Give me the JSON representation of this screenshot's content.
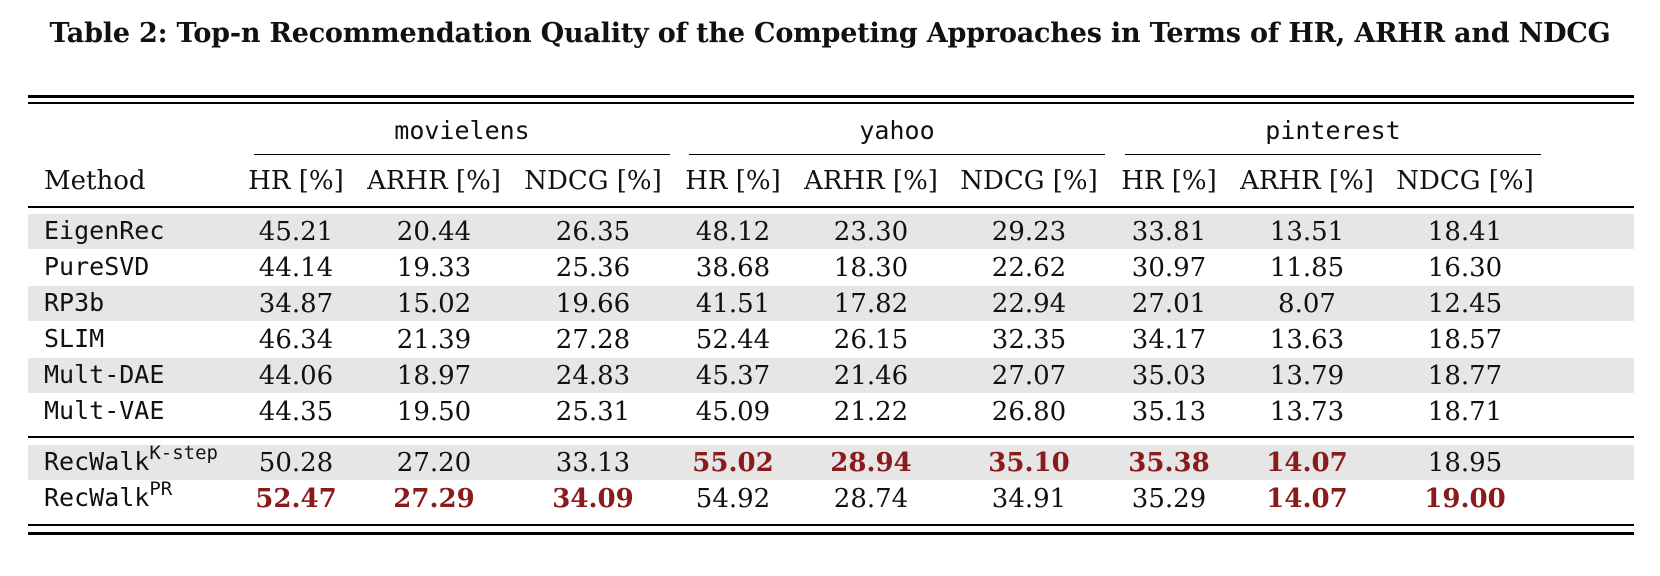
{
  "caption": "Table 2: Top-n Recommendation Quality of the Competing Approaches in Terms of HR, ARHR and NDCG",
  "header": {
    "method": "Method",
    "groups": [
      "movielens",
      "yahoo",
      "pinterest"
    ],
    "metrics": [
      "HR [%]",
      "ARHR [%]",
      "NDCG [%]"
    ]
  },
  "rows": [
    {
      "method": "EigenRec",
      "sup": "",
      "values": [
        "45.21",
        "20.44",
        "26.35",
        "48.12",
        "23.30",
        "29.23",
        "33.81",
        "13.51",
        "18.41"
      ],
      "best": [
        false,
        false,
        false,
        false,
        false,
        false,
        false,
        false,
        false
      ]
    },
    {
      "method": "PureSVD",
      "sup": "",
      "values": [
        "44.14",
        "19.33",
        "25.36",
        "38.68",
        "18.30",
        "22.62",
        "30.97",
        "11.85",
        "16.30"
      ],
      "best": [
        false,
        false,
        false,
        false,
        false,
        false,
        false,
        false,
        false
      ]
    },
    {
      "method": "RP3b",
      "sup": "",
      "values": [
        "34.87",
        "15.02",
        "19.66",
        "41.51",
        "17.82",
        "22.94",
        "27.01",
        "8.07",
        "12.45"
      ],
      "best": [
        false,
        false,
        false,
        false,
        false,
        false,
        false,
        false,
        false
      ]
    },
    {
      "method": "SLIM",
      "sup": "",
      "values": [
        "46.34",
        "21.39",
        "27.28",
        "52.44",
        "26.15",
        "32.35",
        "34.17",
        "13.63",
        "18.57"
      ],
      "best": [
        false,
        false,
        false,
        false,
        false,
        false,
        false,
        false,
        false
      ]
    },
    {
      "method": "Mult-DAE",
      "sup": "",
      "values": [
        "44.06",
        "18.97",
        "24.83",
        "45.37",
        "21.46",
        "27.07",
        "35.03",
        "13.79",
        "18.77"
      ],
      "best": [
        false,
        false,
        false,
        false,
        false,
        false,
        false,
        false,
        false
      ]
    },
    {
      "method": "Mult-VAE",
      "sup": "",
      "values": [
        "44.35",
        "19.50",
        "25.31",
        "45.09",
        "21.22",
        "26.80",
        "35.13",
        "13.73",
        "18.71"
      ],
      "best": [
        false,
        false,
        false,
        false,
        false,
        false,
        false,
        false,
        false
      ]
    },
    {
      "method": "RecWalk",
      "sup": "K-step",
      "values": [
        "50.28",
        "27.20",
        "33.13",
        "55.02",
        "28.94",
        "35.10",
        "35.38",
        "14.07",
        "18.95"
      ],
      "best": [
        false,
        false,
        false,
        true,
        true,
        true,
        true,
        true,
        false
      ]
    },
    {
      "method": "RecWalk",
      "sup": "PR",
      "values": [
        "52.47",
        "27.29",
        "34.09",
        "54.92",
        "28.74",
        "34.91",
        "35.29",
        "14.07",
        "19.00"
      ],
      "best": [
        true,
        true,
        true,
        false,
        false,
        false,
        false,
        true,
        true
      ]
    }
  ]
}
